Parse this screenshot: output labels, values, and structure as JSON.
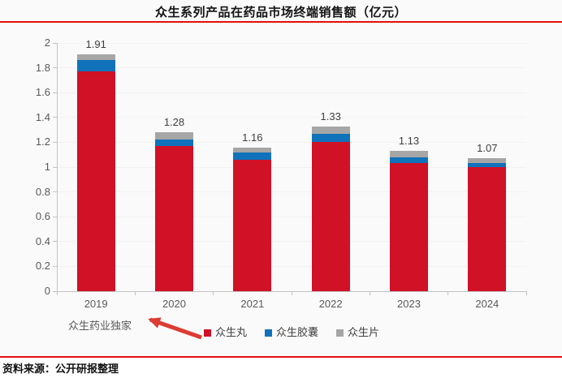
{
  "header": {
    "title": "众生系列产品在药品市场终端销售额（亿元）",
    "rule_color": "#e20f0f"
  },
  "chart_data": {
    "type": "bar",
    "stacked": true,
    "title": "众生系列产品在药品市场终端销售额（亿元）",
    "categories": [
      "2019",
      "2020",
      "2021",
      "2022",
      "2023",
      "2024"
    ],
    "series": [
      {
        "name": "众生丸",
        "color": "#d01126",
        "values": [
          1.77,
          1.17,
          1.06,
          1.2,
          1.03,
          1.0
        ]
      },
      {
        "name": "众生胶囊",
        "color": "#1072ba",
        "values": [
          0.09,
          0.05,
          0.06,
          0.07,
          0.05,
          0.03
        ]
      },
      {
        "name": "众生片",
        "color": "#a6a6a6",
        "values": [
          0.05,
          0.06,
          0.04,
          0.06,
          0.05,
          0.04
        ]
      }
    ],
    "totals": [
      "1.91",
      "1.28",
      "1.16",
      "1.33",
      "1.13",
      "1.07"
    ],
    "ylim": [
      0,
      2
    ],
    "ytick_labels": [
      "2",
      "1.8",
      "1.6",
      "1.4",
      "1.2",
      "1",
      "0.8",
      "0.6",
      "0.4",
      "0.2",
      "0"
    ],
    "grid": "very-faint-horizontal",
    "legend_position": "bottom",
    "axis_color": "#c3c3c3",
    "tick_text_color": "#595959"
  },
  "annotation": {
    "label": "众生药业独家",
    "arrow_color": "#dc3c32"
  },
  "footer": {
    "source": "资料来源：公开研报整理",
    "rule_color": "#e20f0f"
  }
}
